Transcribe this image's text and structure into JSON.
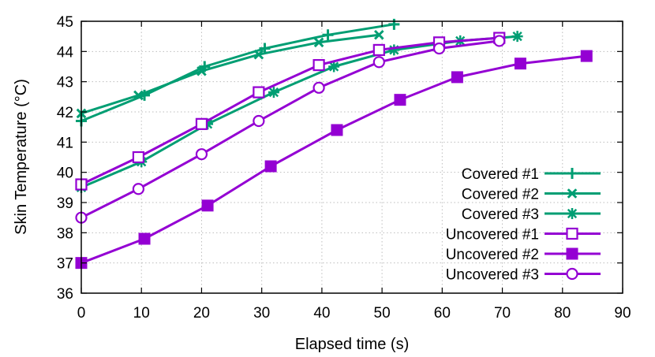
{
  "chart_data": {
    "type": "line",
    "title": "",
    "xlabel": "Elapsed time (s)",
    "ylabel": "Skin Temperature (°C)",
    "xlim": [
      0,
      90
    ],
    "ylim": [
      36,
      45
    ],
    "xticks": [
      0,
      10,
      20,
      30,
      40,
      50,
      60,
      70,
      80,
      90
    ],
    "yticks": [
      36,
      37,
      38,
      39,
      40,
      41,
      42,
      43,
      44,
      45
    ],
    "grid": true,
    "legend_position": "bottom-right",
    "series": [
      {
        "name": "Covered #1",
        "color": "#009e73",
        "marker": "plus",
        "x": [
          0,
          10.5,
          20.5,
          30.5,
          41,
          52
        ],
        "y": [
          41.7,
          42.55,
          43.5,
          44.1,
          44.55,
          44.9
        ]
      },
      {
        "name": "Covered #2",
        "color": "#009e73",
        "marker": "x",
        "x": [
          0,
          9.5,
          20,
          29.5,
          39.5,
          49.5
        ],
        "y": [
          41.95,
          42.55,
          43.35,
          43.9,
          44.3,
          44.55
        ]
      },
      {
        "name": "Covered #3",
        "color": "#009e73",
        "marker": "star",
        "x": [
          0,
          10,
          21,
          32,
          42,
          52,
          63,
          72.5
        ],
        "y": [
          39.5,
          40.35,
          41.6,
          42.65,
          43.5,
          44.05,
          44.35,
          44.5
        ]
      },
      {
        "name": "Uncovered #1",
        "color": "#9400d3",
        "marker": "open-square",
        "x": [
          0,
          9.5,
          20,
          29.5,
          39.5,
          49.5,
          59.5,
          69.5
        ],
        "y": [
          39.6,
          40.5,
          41.6,
          42.65,
          43.55,
          44.05,
          44.3,
          44.45
        ]
      },
      {
        "name": "Uncovered #2",
        "color": "#9400d3",
        "marker": "filled-square",
        "x": [
          0,
          10.5,
          21,
          31.5,
          42.5,
          53,
          62.5,
          73,
          84
        ],
        "y": [
          37.0,
          37.8,
          38.9,
          40.2,
          41.4,
          42.4,
          43.15,
          43.6,
          43.85
        ]
      },
      {
        "name": "Uncovered #3",
        "color": "#9400d3",
        "marker": "open-circle",
        "x": [
          0,
          9.5,
          20,
          29.5,
          39.5,
          49.5,
          59.5,
          69.5
        ],
        "y": [
          38.5,
          39.45,
          40.6,
          41.7,
          42.8,
          43.65,
          44.1,
          44.35
        ]
      }
    ]
  }
}
